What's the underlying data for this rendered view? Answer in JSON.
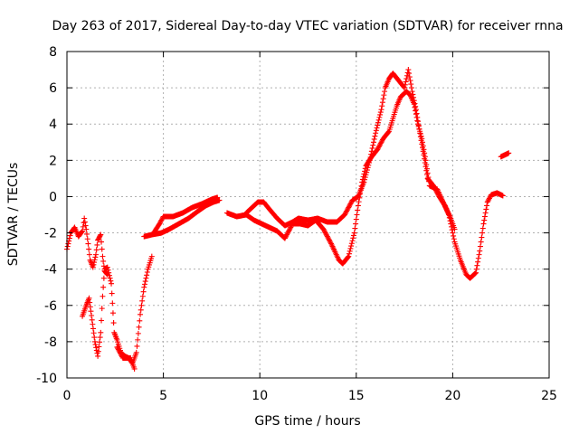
{
  "chart_data": {
    "type": "scatter",
    "title": "Day 263 of 2017, Sidereal Day-to-day VTEC variation (SDTVAR) for receiver rnna",
    "xlabel": "GPS time / hours",
    "ylabel": "SDTVAR / TECUs",
    "xlim": [
      0,
      25
    ],
    "ylim": [
      -10,
      8
    ],
    "xticks": [
      0,
      5,
      10,
      15,
      20,
      25
    ],
    "yticks": [
      -10,
      -8,
      -6,
      -4,
      -2,
      0,
      2,
      4,
      6,
      8
    ],
    "grid": true,
    "marker": "+",
    "color": "#ff0000",
    "series": [
      {
        "segments": [
          [
            [
              0.0,
              -2.9
            ],
            [
              0.2,
              -2.0
            ],
            [
              0.4,
              -1.7
            ],
            [
              0.6,
              -2.2
            ],
            [
              0.8,
              -1.9
            ],
            [
              0.9,
              -1.2
            ],
            [
              1.0,
              -1.8
            ],
            [
              1.1,
              -2.6
            ],
            [
              1.2,
              -3.5
            ],
            [
              1.35,
              -3.9
            ],
            [
              1.5,
              -3.2
            ],
            [
              1.6,
              -2.4
            ],
            [
              1.75,
              -2.1
            ],
            [
              1.85,
              -3.3
            ],
            [
              1.95,
              -4.1
            ],
            [
              2.1,
              -4.3
            ]
          ],
          [
            [
              0.8,
              -6.6
            ],
            [
              1.0,
              -6.0
            ],
            [
              1.15,
              -5.6
            ],
            [
              1.3,
              -6.8
            ],
            [
              1.45,
              -8.0
            ],
            [
              1.6,
              -8.8
            ],
            [
              1.75,
              -7.5
            ],
            [
              1.85,
              -5.5
            ],
            [
              1.95,
              -4.0
            ],
            [
              2.1,
              -3.9
            ],
            [
              2.3,
              -4.8
            ],
            [
              2.45,
              -7.5
            ],
            [
              2.6,
              -7.9
            ],
            [
              2.8,
              -8.6
            ],
            [
              3.0,
              -8.8
            ],
            [
              3.2,
              -8.9
            ],
            [
              3.4,
              -9.2
            ],
            [
              3.6,
              -8.6
            ],
            [
              3.8,
              -6.5
            ],
            [
              4.0,
              -5.0
            ],
            [
              4.2,
              -4.0
            ],
            [
              4.4,
              -3.3
            ]
          ],
          [
            [
              2.6,
              -8.3
            ],
            [
              2.9,
              -8.9
            ],
            [
              3.3,
              -8.9
            ],
            [
              3.5,
              -9.5
            ]
          ],
          [
            [
              4.0,
              -2.2
            ],
            [
              4.4,
              -2.1
            ],
            [
              4.9,
              -2.0
            ],
            [
              5.3,
              -1.8
            ],
            [
              5.8,
              -1.5
            ],
            [
              6.3,
              -1.2
            ],
            [
              6.8,
              -0.8
            ],
            [
              7.2,
              -0.5
            ],
            [
              7.6,
              -0.3
            ],
            [
              7.9,
              -0.2
            ]
          ],
          [
            [
              4.5,
              -2.0
            ],
            [
              4.8,
              -1.5
            ],
            [
              5.0,
              -1.1
            ],
            [
              5.5,
              -1.1
            ],
            [
              6.0,
              -0.9
            ],
            [
              6.5,
              -0.6
            ],
            [
              7.0,
              -0.4
            ],
            [
              7.5,
              -0.15
            ],
            [
              7.8,
              -0.05
            ]
          ],
          [
            [
              8.3,
              -0.9
            ],
            [
              8.8,
              -1.1
            ],
            [
              9.3,
              -1.0
            ],
            [
              9.7,
              -1.3
            ],
            [
              10.1,
              -1.5
            ],
            [
              10.5,
              -1.7
            ],
            [
              10.9,
              -1.9
            ],
            [
              11.3,
              -2.3
            ],
            [
              11.7,
              -1.5
            ],
            [
              12.1,
              -1.5
            ],
            [
              12.5,
              -1.6
            ],
            [
              12.9,
              -1.3
            ],
            [
              13.3,
              -1.8
            ],
            [
              13.7,
              -2.6
            ],
            [
              14.1,
              -3.5
            ],
            [
              14.3,
              -3.7
            ],
            [
              14.6,
              -3.3
            ],
            [
              14.9,
              -2.0
            ],
            [
              15.1,
              -0.5
            ],
            [
              15.3,
              0.8
            ],
            [
              15.5,
              1.7
            ],
            [
              15.8,
              2.2
            ],
            [
              16.1,
              2.6
            ],
            [
              16.4,
              3.2
            ],
            [
              16.7,
              3.6
            ],
            [
              16.9,
              4.3
            ],
            [
              17.1,
              5.0
            ],
            [
              17.3,
              5.5
            ],
            [
              17.6,
              5.8
            ],
            [
              17.8,
              5.6
            ],
            [
              18.0,
              5.1
            ],
            [
              18.2,
              4.0
            ],
            [
              18.4,
              3.2
            ],
            [
              18.6,
              2.0
            ],
            [
              18.8,
              0.6
            ],
            [
              19.0,
              0.5
            ],
            [
              19.2,
              0.4
            ],
            [
              19.5,
              -0.3
            ],
            [
              19.8,
              -1.0
            ],
            [
              20.1,
              -2.5
            ],
            [
              20.4,
              -3.5
            ],
            [
              20.7,
              -4.3
            ],
            [
              20.9,
              -4.5
            ],
            [
              21.2,
              -4.2
            ],
            [
              21.4,
              -3.0
            ],
            [
              21.6,
              -1.5
            ],
            [
              21.8,
              -0.3
            ],
            [
              22.0,
              0.1
            ],
            [
              22.3,
              0.2
            ],
            [
              22.6,
              0.05
            ]
          ],
          [
            [
              9.3,
              -0.9
            ],
            [
              9.6,
              -0.6
            ],
            [
              9.9,
              -0.3
            ],
            [
              10.2,
              -0.3
            ],
            [
              10.5,
              -0.7
            ],
            [
              10.9,
              -1.2
            ],
            [
              11.3,
              -1.6
            ],
            [
              11.7,
              -1.4
            ],
            [
              12.0,
              -1.2
            ],
            [
              12.5,
              -1.3
            ],
            [
              13.0,
              -1.2
            ],
            [
              13.5,
              -1.4
            ],
            [
              14.0,
              -1.4
            ],
            [
              14.4,
              -1.0
            ],
            [
              14.8,
              -0.2
            ],
            [
              15.1,
              0.0
            ],
            [
              15.4,
              0.8
            ],
            [
              15.7,
              2.0
            ],
            [
              16.0,
              3.5
            ],
            [
              16.3,
              4.8
            ],
            [
              16.5,
              6.0
            ],
            [
              16.7,
              6.5
            ],
            [
              16.9,
              6.8
            ],
            [
              17.5,
              6.0
            ],
            [
              17.7,
              7.0
            ],
            [
              17.9,
              5.8
            ],
            [
              18.1,
              4.8
            ],
            [
              18.3,
              3.5
            ],
            [
              18.5,
              2.3
            ],
            [
              18.7,
              1.0
            ],
            [
              19.0,
              0.6
            ],
            [
              19.3,
              0.0
            ],
            [
              19.6,
              -0.5
            ],
            [
              19.9,
              -1.2
            ],
            [
              20.1,
              -1.8
            ]
          ],
          [
            [
              22.5,
              2.2
            ],
            [
              22.9,
              2.4
            ]
          ]
        ]
      }
    ]
  }
}
